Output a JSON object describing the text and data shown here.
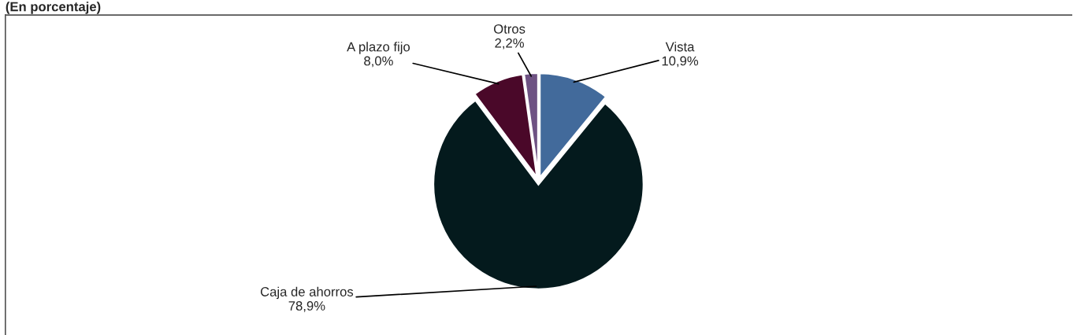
{
  "chart_data": {
    "type": "pie",
    "title": "(En porcentaje)",
    "categories": [
      "Vista",
      "Caja de ahorros",
      "A plazo fijo",
      "Otros"
    ],
    "values": [
      10.9,
      78.9,
      8.0,
      2.2
    ],
    "value_labels": [
      "10,9%",
      "78,9%",
      "8,0%",
      "2,2%"
    ],
    "colors": [
      "#426a9b",
      "#041a1d",
      "#4a0829",
      "#6e5283"
    ]
  }
}
